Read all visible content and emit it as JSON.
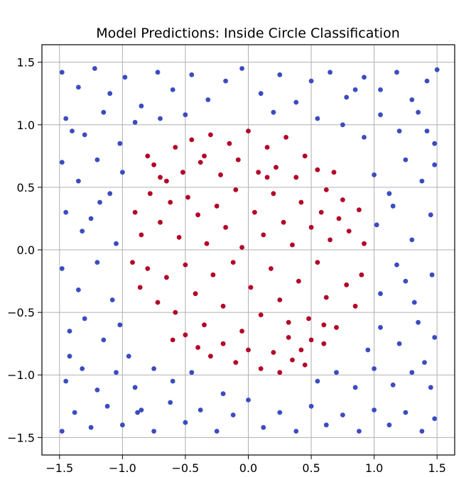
{
  "chart_data": {
    "type": "scatter",
    "title": "Model Predictions: Inside Circle Classification",
    "xlabel": "",
    "ylabel": "",
    "xlim": [
      -1.64,
      1.64
    ],
    "ylim": [
      -1.64,
      1.64
    ],
    "grid": true,
    "x_ticks": [
      -1.5,
      -1.0,
      -0.5,
      0.0,
      0.5,
      1.0,
      1.5
    ],
    "x_tick_labels": [
      "−1.5",
      "−1.0",
      "−0.5",
      "0.0",
      "0.5",
      "1.0",
      "1.5"
    ],
    "y_ticks": [
      1.5,
      1.0,
      0.5,
      0.0,
      -0.5,
      -1.0,
      -1.5
    ],
    "y_tick_labels": [
      "1.5",
      "1.0",
      "0.5",
      "0.0",
      "−0.5",
      "−1.0",
      "−1.5"
    ],
    "colors": {
      "inside": "#b40426",
      "outside": "#3b4cc0"
    },
    "series": [
      {
        "class": "inside",
        "points": [
          [
            -0.8,
            0.75
          ],
          [
            -0.75,
            0.68
          ],
          [
            -0.65,
            0.55
          ],
          [
            -0.58,
            0.82
          ],
          [
            -0.52,
            0.62
          ],
          [
            -0.45,
            0.88
          ],
          [
            -0.38,
            0.7
          ],
          [
            -0.3,
            0.92
          ],
          [
            -0.22,
            0.6
          ],
          [
            -0.15,
            0.85
          ],
          [
            -0.08,
            0.72
          ],
          [
            0.0,
            0.95
          ],
          [
            0.08,
            0.62
          ],
          [
            0.15,
            0.82
          ],
          [
            0.22,
            0.66
          ],
          [
            0.3,
            0.9
          ],
          [
            0.38,
            0.58
          ],
          [
            0.45,
            0.75
          ],
          [
            0.55,
            0.64
          ],
          [
            0.62,
            0.48
          ],
          [
            0.68,
            0.62
          ],
          [
            0.75,
            0.4
          ],
          [
            -0.9,
            0.3
          ],
          [
            -0.85,
            0.12
          ],
          [
            -0.78,
            0.45
          ],
          [
            -0.7,
            0.22
          ],
          [
            -0.62,
            0.38
          ],
          [
            -0.55,
            0.1
          ],
          [
            -0.48,
            0.42
          ],
          [
            -0.4,
            0.28
          ],
          [
            -0.33,
            0.05
          ],
          [
            -0.25,
            0.35
          ],
          [
            -0.18,
            0.18
          ],
          [
            -0.1,
            0.48
          ],
          [
            -0.05,
            0.02
          ],
          [
            0.05,
            0.3
          ],
          [
            0.12,
            0.12
          ],
          [
            0.2,
            0.45
          ],
          [
            0.28,
            0.22
          ],
          [
            0.35,
            0.04
          ],
          [
            0.42,
            0.38
          ],
          [
            0.5,
            0.18
          ],
          [
            0.58,
            0.3
          ],
          [
            0.65,
            0.08
          ],
          [
            0.72,
            0.25
          ],
          [
            0.8,
            0.15
          ],
          [
            0.88,
            0.32
          ],
          [
            0.92,
            0.05
          ],
          [
            -0.92,
            -0.1
          ],
          [
            -0.86,
            -0.3
          ],
          [
            -0.8,
            -0.15
          ],
          [
            -0.72,
            -0.42
          ],
          [
            -0.65,
            -0.22
          ],
          [
            -0.58,
            -0.5
          ],
          [
            -0.5,
            -0.12
          ],
          [
            -0.42,
            -0.35
          ],
          [
            -0.35,
            -0.6
          ],
          [
            -0.28,
            -0.2
          ],
          [
            -0.2,
            -0.45
          ],
          [
            -0.12,
            -0.1
          ],
          [
            -0.05,
            -0.65
          ],
          [
            0.02,
            -0.3
          ],
          [
            0.1,
            -0.52
          ],
          [
            0.18,
            -0.15
          ],
          [
            0.25,
            -0.4
          ],
          [
            0.32,
            -0.7
          ],
          [
            0.4,
            -0.25
          ],
          [
            0.48,
            -0.55
          ],
          [
            0.55,
            -0.1
          ],
          [
            0.62,
            -0.38
          ],
          [
            0.7,
            -0.62
          ],
          [
            0.78,
            -0.28
          ],
          [
            0.85,
            -0.45
          ],
          [
            0.9,
            -0.2
          ],
          [
            -0.6,
            -0.72
          ],
          [
            -0.5,
            -0.68
          ],
          [
            -0.4,
            -0.78
          ],
          [
            -0.3,
            -0.85
          ],
          [
            -0.2,
            -0.75
          ],
          [
            -0.1,
            -0.9
          ],
          [
            0.0,
            -0.8
          ],
          [
            0.1,
            -0.95
          ],
          [
            0.2,
            -0.82
          ],
          [
            0.25,
            -0.98
          ],
          [
            0.35,
            -0.88
          ],
          [
            0.42,
            -0.8
          ],
          [
            0.5,
            -0.72
          ],
          [
            0.6,
            -0.6
          ],
          [
            0.45,
            -0.92
          ],
          [
            0.32,
            -0.58
          ],
          [
            -0.35,
            0.75
          ],
          [
            0.15,
            0.58
          ],
          [
            -0.7,
            0.58
          ],
          [
            0.6,
            -0.75
          ]
        ]
      },
      {
        "class": "outside",
        "points": [
          [
            -1.48,
            1.42
          ],
          [
            -1.35,
            1.3
          ],
          [
            -1.22,
            1.45
          ],
          [
            -1.1,
            1.25
          ],
          [
            -0.98,
            1.38
          ],
          [
            -0.85,
            1.15
          ],
          [
            -0.72,
            1.42
          ],
          [
            -0.6,
            1.28
          ],
          [
            -0.45,
            1.4
          ],
          [
            -0.32,
            1.2
          ],
          [
            -0.18,
            1.35
          ],
          [
            -0.05,
            1.45
          ],
          [
            0.1,
            1.25
          ],
          [
            0.25,
            1.4
          ],
          [
            0.38,
            1.18
          ],
          [
            0.5,
            1.35
          ],
          [
            0.65,
            1.42
          ],
          [
            0.78,
            1.22
          ],
          [
            0.92,
            1.38
          ],
          [
            1.05,
            1.28
          ],
          [
            1.18,
            1.42
          ],
          [
            1.3,
            1.2
          ],
          [
            1.42,
            1.35
          ],
          [
            1.5,
            1.44
          ],
          [
            -1.45,
            1.05
          ],
          [
            -1.3,
            0.92
          ],
          [
            -1.15,
            1.1
          ],
          [
            -1.02,
            0.85
          ],
          [
            -0.9,
            1.02
          ],
          [
            -0.7,
            1.05
          ],
          [
            -0.5,
            1.08
          ],
          [
            0.55,
            1.05
          ],
          [
            0.75,
            1.0
          ],
          [
            0.92,
            0.9
          ],
          [
            1.05,
            1.08
          ],
          [
            1.2,
            0.95
          ],
          [
            1.35,
            1.1
          ],
          [
            1.48,
            0.85
          ],
          [
            -1.48,
            0.7
          ],
          [
            -1.35,
            0.55
          ],
          [
            -1.2,
            0.72
          ],
          [
            -1.1,
            0.45
          ],
          [
            -1.0,
            0.62
          ],
          [
            1.0,
            0.6
          ],
          [
            1.12,
            0.45
          ],
          [
            1.25,
            0.72
          ],
          [
            1.38,
            0.55
          ],
          [
            1.48,
            0.68
          ],
          [
            -1.45,
            0.3
          ],
          [
            -1.32,
            0.15
          ],
          [
            -1.18,
            0.38
          ],
          [
            -1.05,
            0.05
          ],
          [
            1.02,
            0.2
          ],
          [
            1.15,
            0.35
          ],
          [
            1.3,
            0.08
          ],
          [
            1.45,
            0.28
          ],
          [
            -1.48,
            -0.15
          ],
          [
            -1.35,
            -0.32
          ],
          [
            -1.2,
            -0.1
          ],
          [
            -1.08,
            -0.4
          ],
          [
            1.05,
            -0.35
          ],
          [
            1.18,
            -0.12
          ],
          [
            1.32,
            -0.42
          ],
          [
            1.46,
            -0.2
          ],
          [
            -1.42,
            -0.65
          ],
          [
            -1.3,
            -0.55
          ],
          [
            -1.15,
            -0.72
          ],
          [
            -1.02,
            -0.6
          ],
          [
            -0.95,
            -0.85
          ],
          [
            0.95,
            -0.8
          ],
          [
            1.05,
            -0.62
          ],
          [
            1.2,
            -0.75
          ],
          [
            1.35,
            -0.58
          ],
          [
            1.48,
            -0.7
          ],
          [
            -1.45,
            -1.05
          ],
          [
            -1.32,
            -0.95
          ],
          [
            -1.2,
            -1.12
          ],
          [
            -1.05,
            -0.98
          ],
          [
            -0.9,
            -1.1
          ],
          [
            -0.75,
            -0.95
          ],
          [
            -0.6,
            -1.05
          ],
          [
            -0.45,
            -0.98
          ],
          [
            0.55,
            -1.05
          ],
          [
            0.7,
            -0.98
          ],
          [
            0.85,
            -1.1
          ],
          [
            1.0,
            -0.95
          ],
          [
            1.15,
            -1.08
          ],
          [
            1.3,
            -0.98
          ],
          [
            1.45,
            -1.1
          ],
          [
            -1.48,
            -1.45
          ],
          [
            -1.38,
            -1.3
          ],
          [
            -1.25,
            -1.42
          ],
          [
            -1.12,
            -1.25
          ],
          [
            -1.0,
            -1.4
          ],
          [
            -0.88,
            -1.3
          ],
          [
            -0.75,
            -1.45
          ],
          [
            -0.62,
            -1.22
          ],
          [
            -0.5,
            -1.38
          ],
          [
            -0.38,
            -1.28
          ],
          [
            -0.25,
            -1.45
          ],
          [
            -0.12,
            -1.32
          ],
          [
            0.0,
            -1.2
          ],
          [
            0.12,
            -1.42
          ],
          [
            0.25,
            -1.3
          ],
          [
            0.38,
            -1.45
          ],
          [
            0.5,
            -1.25
          ],
          [
            0.62,
            -1.4
          ],
          [
            0.75,
            -1.32
          ],
          [
            0.88,
            -1.45
          ],
          [
            1.0,
            -1.28
          ],
          [
            1.12,
            -1.4
          ],
          [
            1.25,
            -1.3
          ],
          [
            1.38,
            -1.45
          ],
          [
            1.48,
            -1.35
          ],
          [
            -1.4,
            0.95
          ],
          [
            1.4,
            -0.9
          ],
          [
            -1.42,
            -0.85
          ],
          [
            1.42,
            0.95
          ],
          [
            -0.2,
            -1.15
          ],
          [
            0.2,
            1.1
          ],
          [
            -1.25,
            0.25
          ],
          [
            1.25,
            -0.25
          ],
          [
            0.85,
            1.28
          ],
          [
            -0.85,
            -1.28
          ]
        ]
      }
    ]
  }
}
